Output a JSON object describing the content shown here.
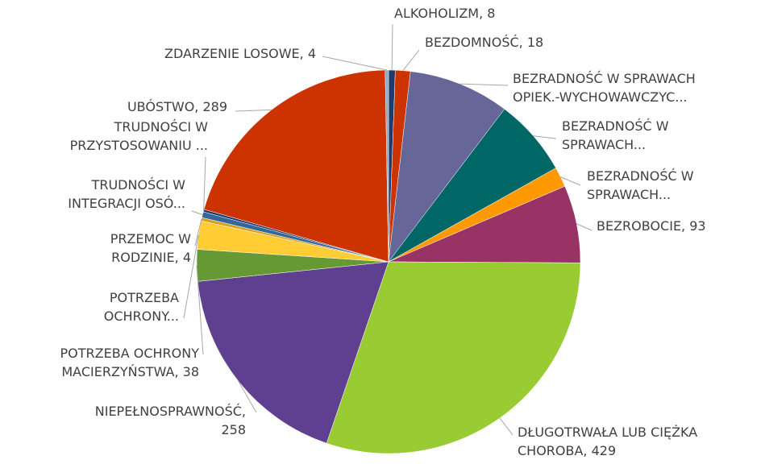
{
  "chart_data": {
    "type": "pie",
    "labels": [
      [
        "ALKOHOLIZM, 8"
      ],
      [
        "BEZDOMNOŚĆ, 18"
      ],
      [
        "BEZRADNOŚĆ W SPRAWACH",
        "OPIEK.-WYCHOWAWCZYC..."
      ],
      [
        "BEZRADNOŚĆ W",
        "SPRAWACH..."
      ],
      [
        "BEZRADNOŚĆ W",
        "SPRAWACH..."
      ],
      [
        "BEZROBOCIE, 93"
      ],
      [
        "DŁUGOTRWAŁA LUB CIĘŻKA",
        "CHOROBA, 429"
      ],
      [
        "NIEPEŁNOSPRAWNOŚĆ,",
        "258"
      ],
      [
        "POTRZEBA OCHRONY",
        "MACIERZYŃSTWA, 38"
      ],
      [
        "POTRZEBA",
        "OCHRONY..."
      ],
      [
        "PRZEMOC W",
        "RODZINIE, 4"
      ],
      [
        "TRUDNOŚCI W",
        "INTEGRACJI OSÓ..."
      ],
      [
        "TRUDNOŚCI W",
        "PRZYSTOSOWANIU ..."
      ],
      [
        "UBÓSTWO, 289"
      ],
      [
        "ZDARZENIE LOSOWE, 4"
      ]
    ],
    "values": [
      8,
      18,
      121,
      93,
      24,
      93,
      429,
      258,
      38,
      34,
      4,
      7,
      3,
      289,
      4
    ],
    "colors": [
      "#1f3a6e",
      "#cc3300",
      "#666699",
      "#006666",
      "#ff9900",
      "#993366",
      "#99cc33",
      "#5f3f8f",
      "#669933",
      "#ffcc33",
      "#d9a020",
      "#336699",
      "#1f3a6e",
      "#cc3300",
      "#8fa8c0"
    ]
  }
}
